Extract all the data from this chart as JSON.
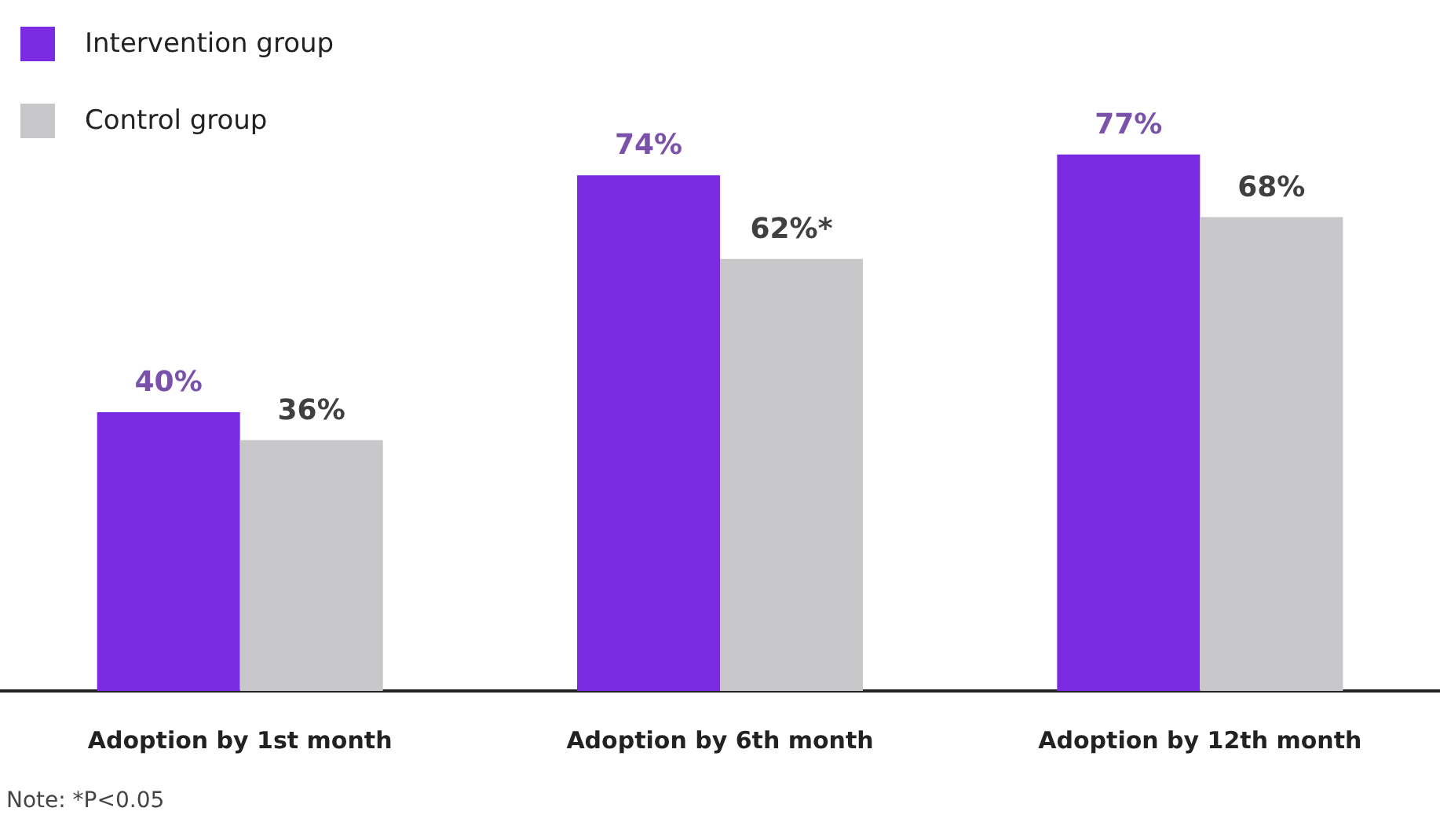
{
  "chart_data": {
    "type": "bar",
    "categories": [
      "Adoption by 1st month",
      "Adoption by 6th month",
      "Adoption by 12th month"
    ],
    "series": [
      {
        "name": "Intervention group",
        "color": "#7a2ae0",
        "values": [
          40,
          74,
          77
        ],
        "value_labels": [
          "40%",
          "74%",
          "77%"
        ]
      },
      {
        "name": "Control group",
        "color": "#c8c8ca",
        "values": [
          36,
          62,
          68
        ],
        "value_labels": [
          "36%",
          "62%*",
          "68%"
        ]
      }
    ],
    "legend": "top left",
    "grid": false,
    "annotations": [
      "Note: *P<0.05"
    ]
  }
}
